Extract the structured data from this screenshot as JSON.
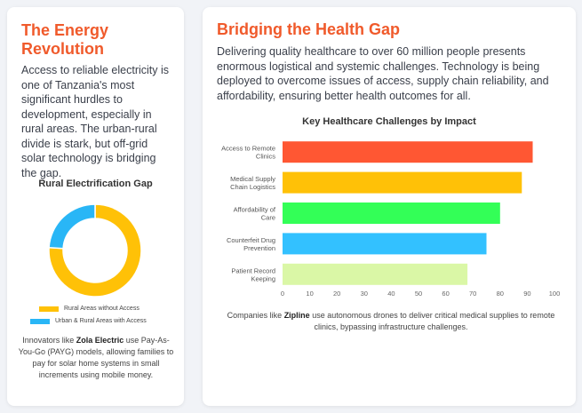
{
  "left": {
    "title": "The Energy Revolution",
    "intro": "Access to reliable electricity is one of Tanzania's most significant hurdles to development, especially in rural areas. The urban-rural divide is stark, but off-grid solar technology is bridging the gap.",
    "footnote": {
      "pre": "Innovators like ",
      "bold": "Zola Electric",
      "post": " use Pay-As-You-Go (PAYG) models, allowing families to pay for solar home systems in small increments using mobile money."
    }
  },
  "right": {
    "title": "Bridging the Health Gap",
    "intro": "Delivering quality healthcare to over 60 million people presents enormous logistical and systemic challenges. Technology is being deployed to overcome issues of access, supply chain reliability, and affordability, ensuring better health outcomes for all.",
    "footnote": {
      "pre": "Companies like ",
      "bold": "Zipline",
      "post": " use autonomous drones to deliver critical medical supplies to remote clinics, bypassing infrastructure challenges."
    }
  },
  "chart_data": [
    {
      "type": "pie",
      "style": "doughnut",
      "title": "Rural Electrification Gap",
      "labels": [
        "Rural Areas without Access",
        "Urban & Rural Areas with Access"
      ],
      "values": [
        76,
        24
      ],
      "colors": [
        "#ffc107",
        "#29b6f6"
      ],
      "legend": "bottom"
    },
    {
      "type": "bar",
      "orientation": "horizontal",
      "title": "Key Healthcare Challenges by Impact",
      "categories": [
        [
          "Access to Remote",
          "Clinics"
        ],
        [
          "Medical Supply",
          "Chain Logistics"
        ],
        [
          "Affordability of",
          "Care"
        ],
        [
          "Counterfeit Drug",
          "Prevention"
        ],
        [
          "Patient Record",
          "Keeping"
        ]
      ],
      "values": [
        92,
        88,
        80,
        75,
        68
      ],
      "colors": [
        "#ff5733",
        "#ffc107",
        "#33ff57",
        "#33c1ff",
        "#daf7a6"
      ],
      "xlim": [
        0,
        100
      ],
      "xticks": [
        0,
        10,
        20,
        30,
        40,
        50,
        60,
        70,
        80,
        90,
        100
      ],
      "grid": false,
      "legend": "none"
    }
  ]
}
